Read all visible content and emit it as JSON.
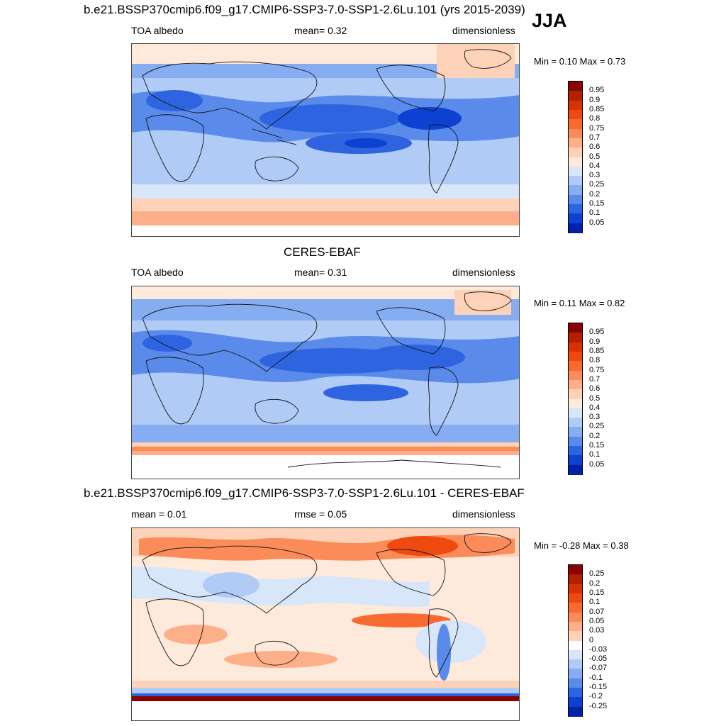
{
  "season": "JJA",
  "panels": [
    {
      "id": "model",
      "title": "b.e21.BSSP370cmip6.f09_g17.CMIP6-SSP3-7.0-SSP1-2.6Lu.101 (yrs 2015-2039)",
      "left_label": "TOA albedo",
      "center_label": "mean=   0.32",
      "right_label": "dimensionless",
      "minmax": "Min =   0.10 Max =   0.73",
      "colorbar": {
        "ticks": [
          "0.95",
          "0.9",
          "0.85",
          "0.8",
          "0.75",
          "0.7",
          "0.6",
          "0.5",
          "0.4",
          "0.3",
          "0.25",
          "0.2",
          "0.15",
          "0.1",
          "0.05"
        ],
        "colors": [
          "#8b0000",
          "#b22000",
          "#d63300",
          "#ee4a10",
          "#f76a30",
          "#fb8c5a",
          "#fdaf8a",
          "#fdd2b8",
          "#feeadb",
          "#d8e6fa",
          "#b0cbf6",
          "#86acf1",
          "#5a8aea",
          "#2e64e0",
          "#0d41d1",
          "#0021a8"
        ]
      }
    },
    {
      "id": "obs",
      "title": "CERES-EBAF",
      "left_label": "TOA albedo",
      "center_label": "mean=   0.31",
      "right_label": "dimensionless",
      "minmax": "Min =   0.11 Max =   0.82",
      "colorbar": {
        "ticks": [
          "0.95",
          "0.9",
          "0.85",
          "0.8",
          "0.75",
          "0.7",
          "0.6",
          "0.5",
          "0.4",
          "0.3",
          "0.25",
          "0.2",
          "0.15",
          "0.1",
          "0.05"
        ],
        "colors": [
          "#8b0000",
          "#b22000",
          "#d63300",
          "#ee4a10",
          "#f76a30",
          "#fb8c5a",
          "#fdaf8a",
          "#fdd2b8",
          "#feeadb",
          "#d8e6fa",
          "#b0cbf6",
          "#86acf1",
          "#5a8aea",
          "#2e64e0",
          "#0d41d1",
          "#0021a8"
        ]
      }
    },
    {
      "id": "diff",
      "title": "b.e21.BSSP370cmip6.f09_g17.CMIP6-SSP3-7.0-SSP1-2.6Lu.101 - CERES-EBAF",
      "left_label": "mean =   0.01",
      "center_label": "rmse =   0.05",
      "right_label": "dimensionless",
      "minmax": "Min =  -0.28 Max =   0.38",
      "colorbar": {
        "ticks": [
          "0.25",
          "0.2",
          "0.15",
          "0.1",
          "0.07",
          "0.05",
          "0.03",
          "0",
          "-0.03",
          "-0.05",
          "-0.07",
          "-0.1",
          "-0.15",
          "-0.2",
          "-0.25"
        ],
        "colors": [
          "#8b0000",
          "#b22000",
          "#d63300",
          "#ee4a10",
          "#f76a30",
          "#fb8c5a",
          "#fdaf8a",
          "#fdd2b8",
          "#ffffff",
          "#d8e6fa",
          "#b0cbf6",
          "#86acf1",
          "#5a8aea",
          "#2e64e0",
          "#0d41d1",
          "#0021a8"
        ]
      }
    }
  ]
}
